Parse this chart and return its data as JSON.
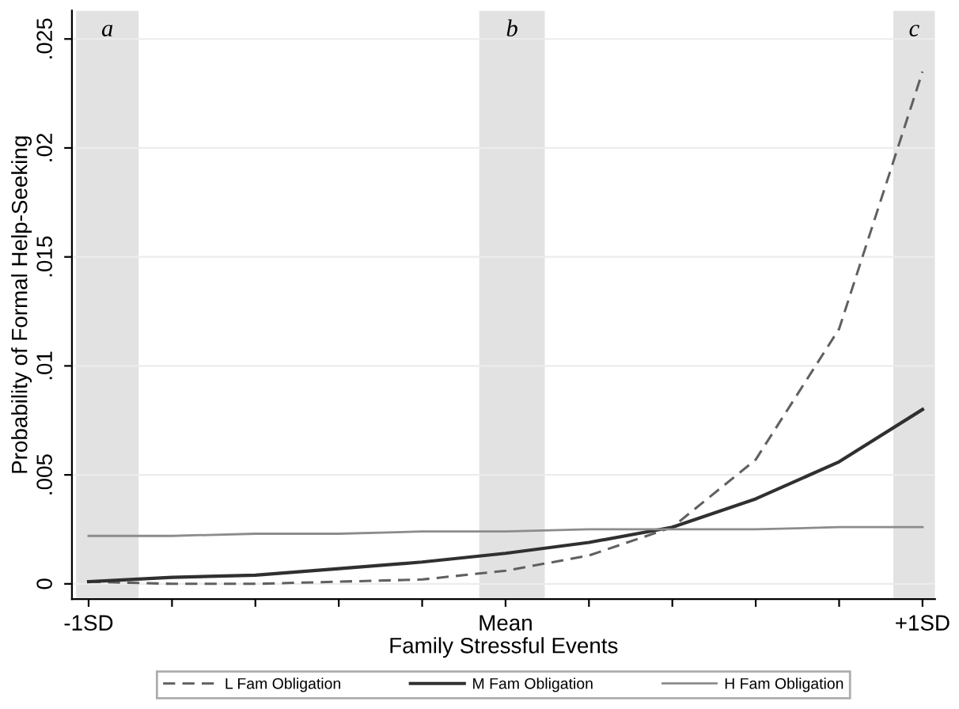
{
  "chart_data": {
    "type": "line",
    "xlabel": "Family Stressful Events",
    "ylabel": "Probability of Formal Help-Seeking",
    "x": [
      -1,
      -0.8,
      -0.6,
      -0.4,
      -0.2,
      0,
      0.2,
      0.4,
      0.6,
      0.8,
      1
    ],
    "series": [
      {
        "name": "L Fam Obligation",
        "color": "#606060",
        "line_style": "dashed",
        "values": [
          0.0001,
          0,
          0,
          0.0001,
          0.0002,
          0.0006,
          0.0013,
          0.0026,
          0.0057,
          0.0117,
          0.0235
        ]
      },
      {
        "name": "M Fam Obligation",
        "color": "#303030",
        "line_style": "solid",
        "values": [
          0.0001,
          0.0003,
          0.0004,
          0.0007,
          0.001,
          0.0014,
          0.0019,
          0.0026,
          0.0039,
          0.0056,
          0.008
        ]
      },
      {
        "name": "H Fam Obligation",
        "color": "#8c8c8c",
        "line_style": "solid",
        "values": [
          0.0022,
          0.0022,
          0.0023,
          0.0023,
          0.0024,
          0.0024,
          0.0025,
          0.0025,
          0.0025,
          0.0026,
          0.0026
        ]
      }
    ],
    "bands": [
      {
        "axis": "x",
        "from": -1.03,
        "to": -0.88,
        "label": "a",
        "color": "#e2e2e2"
      },
      {
        "axis": "x",
        "from": -0.063,
        "to": 0.094,
        "label": "b",
        "color": "#e2e2e2"
      },
      {
        "axis": "x",
        "from": 0.93,
        "to": 1.03,
        "label": "c",
        "color": "#e2e2e2"
      }
    ],
    "xlim": [
      -1.04,
      1.03
    ],
    "ylim": [
      -0.0007,
      0.0263
    ],
    "xticks": [
      {
        "value": -1,
        "label": "-1SD"
      },
      {
        "value": -0.8,
        "label": null
      },
      {
        "value": -0.6,
        "label": null
      },
      {
        "value": -0.4,
        "label": null
      },
      {
        "value": -0.2,
        "label": null
      },
      {
        "value": 0,
        "label": "Mean"
      },
      {
        "value": 0.2,
        "label": null
      },
      {
        "value": 0.4,
        "label": null
      },
      {
        "value": 0.6,
        "label": null
      },
      {
        "value": 0.8,
        "label": null
      },
      {
        "value": 1,
        "label": "+1SD"
      }
    ],
    "yticks": [
      0,
      {
        "value": 0.005,
        "label": ".005"
      },
      {
        "value": 0.01,
        "label": ".01"
      },
      {
        "value": 0.015,
        "label": ".015"
      },
      {
        "value": 0.02,
        "label": ".02"
      },
      {
        "value": 0.025,
        "label": ".025"
      }
    ],
    "grid": "y",
    "legend": "bottom",
    "marker": "none"
  }
}
